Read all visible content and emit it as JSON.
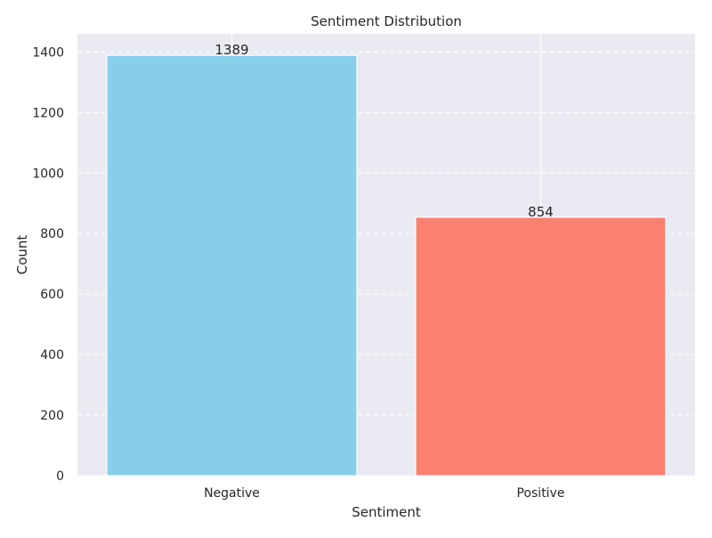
{
  "chart_data": {
    "type": "bar",
    "title": "Sentiment Distribution",
    "xlabel": "Sentiment",
    "ylabel": "Count",
    "categories": [
      "Negative",
      "Positive"
    ],
    "values": [
      1389,
      854
    ],
    "value_labels": [
      "1389",
      "854"
    ],
    "bar_colors": [
      "#87ceeb",
      "#fa8072"
    ],
    "ylim": [
      0,
      1460
    ],
    "yticks": [
      0,
      200,
      400,
      600,
      800,
      1000,
      1200,
      1400
    ],
    "ytick_labels": [
      "0",
      "200",
      "400",
      "600",
      "800",
      "1000",
      "1200",
      "1400"
    ],
    "grid": true,
    "legend": "none",
    "background_color": "#eaeaf2"
  }
}
